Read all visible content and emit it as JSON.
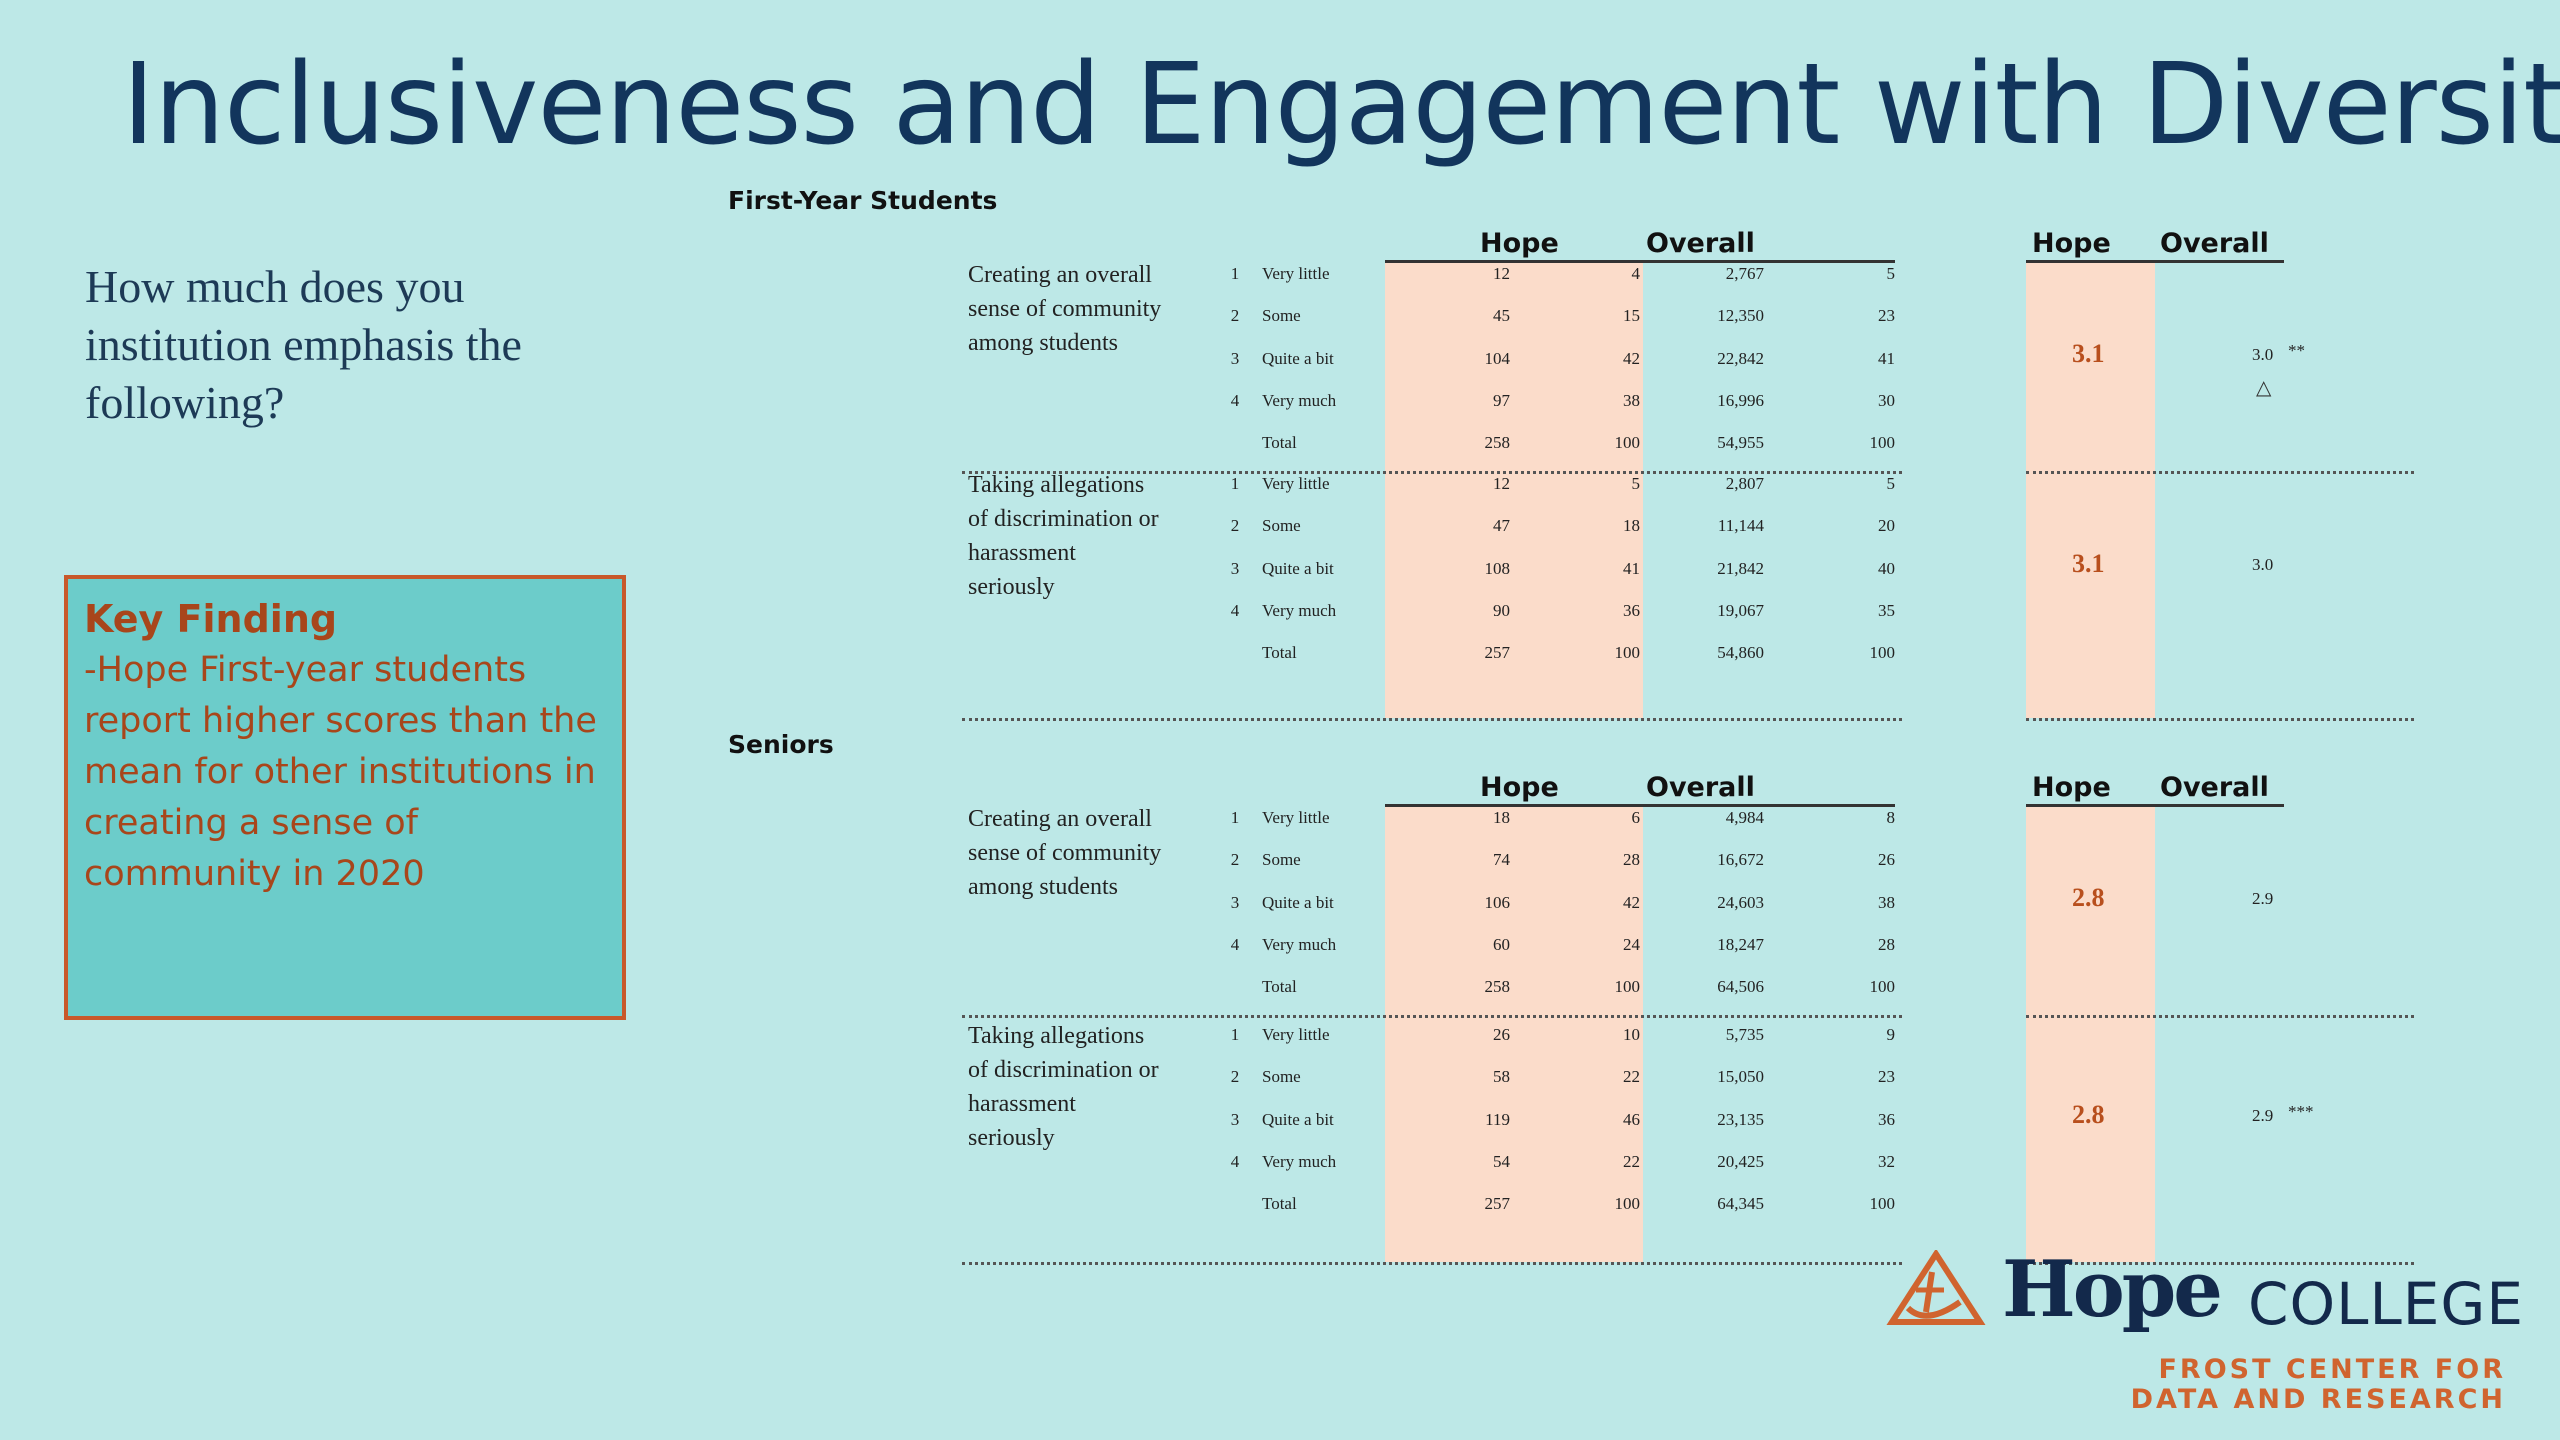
{
  "title": "Inclusiveness and Engagement with Diversity",
  "question": "How much does you institution emphasis the following?",
  "key_finding": {
    "heading": "Key Finding",
    "body": "-Hope First-year students report higher scores than the mean  for other institutions in creating a sense of community in 2020"
  },
  "col_headers": {
    "hope": "Hope",
    "overall": "Overall"
  },
  "sections": [
    {
      "name": "First-Year Students",
      "items": [
        {
          "label": "Creating an overall sense of community among students",
          "rows": [
            {
              "code": "1",
              "resp": "Very little",
              "hope_n": "12",
              "hope_pct": "4",
              "ovr_n": "2,767",
              "ovr_pct": "5"
            },
            {
              "code": "2",
              "resp": "Some",
              "hope_n": "45",
              "hope_pct": "15",
              "ovr_n": "12,350",
              "ovr_pct": "23"
            },
            {
              "code": "3",
              "resp": "Quite a bit",
              "hope_n": "104",
              "hope_pct": "42",
              "ovr_n": "22,842",
              "ovr_pct": "41"
            },
            {
              "code": "4",
              "resp": "Very much",
              "hope_n": "97",
              "hope_pct": "38",
              "ovr_n": "16,996",
              "ovr_pct": "30"
            },
            {
              "code": "",
              "resp": "Total",
              "hope_n": "258",
              "hope_pct": "100",
              "ovr_n": "54,955",
              "ovr_pct": "100"
            }
          ],
          "hope_mean": "3.1",
          "overall_mean": "3.0",
          "sig": "**",
          "triangle": "△"
        },
        {
          "label": "Taking allegations of discrimination or harassment seriously",
          "rows": [
            {
              "code": "1",
              "resp": "Very little",
              "hope_n": "12",
              "hope_pct": "5",
              "ovr_n": "2,807",
              "ovr_pct": "5"
            },
            {
              "code": "2",
              "resp": "Some",
              "hope_n": "47",
              "hope_pct": "18",
              "ovr_n": "11,144",
              "ovr_pct": "20"
            },
            {
              "code": "3",
              "resp": "Quite a bit",
              "hope_n": "108",
              "hope_pct": "41",
              "ovr_n": "21,842",
              "ovr_pct": "40"
            },
            {
              "code": "4",
              "resp": "Very much",
              "hope_n": "90",
              "hope_pct": "36",
              "ovr_n": "19,067",
              "ovr_pct": "35"
            },
            {
              "code": "",
              "resp": "Total",
              "hope_n": "257",
              "hope_pct": "100",
              "ovr_n": "54,860",
              "ovr_pct": "100"
            }
          ],
          "hope_mean": "3.1",
          "overall_mean": "3.0",
          "sig": "",
          "triangle": ""
        }
      ]
    },
    {
      "name": "Seniors",
      "items": [
        {
          "label": "Creating an overall sense of community among students",
          "rows": [
            {
              "code": "1",
              "resp": "Very little",
              "hope_n": "18",
              "hope_pct": "6",
              "ovr_n": "4,984",
              "ovr_pct": "8"
            },
            {
              "code": "2",
              "resp": "Some",
              "hope_n": "74",
              "hope_pct": "28",
              "ovr_n": "16,672",
              "ovr_pct": "26"
            },
            {
              "code": "3",
              "resp": "Quite a bit",
              "hope_n": "106",
              "hope_pct": "42",
              "ovr_n": "24,603",
              "ovr_pct": "38"
            },
            {
              "code": "4",
              "resp": "Very much",
              "hope_n": "60",
              "hope_pct": "24",
              "ovr_n": "18,247",
              "ovr_pct": "28"
            },
            {
              "code": "",
              "resp": "Total",
              "hope_n": "258",
              "hope_pct": "100",
              "ovr_n": "64,506",
              "ovr_pct": "100"
            }
          ],
          "hope_mean": "2.8",
          "overall_mean": "2.9",
          "sig": "",
          "triangle": ""
        },
        {
          "label": "Taking allegations of discrimination or harassment seriously",
          "rows": [
            {
              "code": "1",
              "resp": "Very little",
              "hope_n": "26",
              "hope_pct": "10",
              "ovr_n": "5,735",
              "ovr_pct": "9"
            },
            {
              "code": "2",
              "resp": "Some",
              "hope_n": "58",
              "hope_pct": "22",
              "ovr_n": "15,050",
              "ovr_pct": "23"
            },
            {
              "code": "3",
              "resp": "Quite a bit",
              "hope_n": "119",
              "hope_pct": "46",
              "ovr_n": "23,135",
              "ovr_pct": "36"
            },
            {
              "code": "4",
              "resp": "Very much",
              "hope_n": "54",
              "hope_pct": "22",
              "ovr_n": "20,425",
              "ovr_pct": "32"
            },
            {
              "code": "",
              "resp": "Total",
              "hope_n": "257",
              "hope_pct": "100",
              "ovr_n": "64,345",
              "ovr_pct": "100"
            }
          ],
          "hope_mean": "2.8",
          "overall_mean": "2.9",
          "sig": "***",
          "triangle": ""
        }
      ]
    }
  ],
  "logo": {
    "hope": "Hope",
    "college": "COLLEGE",
    "sub1": "FROST CENTER FOR",
    "sub2": "DATA AND RESEARCH"
  },
  "colors": {
    "background": "#bde8e7",
    "highlight": "#fbdcca",
    "accent": "#b84f1d",
    "navy": "#13294b"
  }
}
